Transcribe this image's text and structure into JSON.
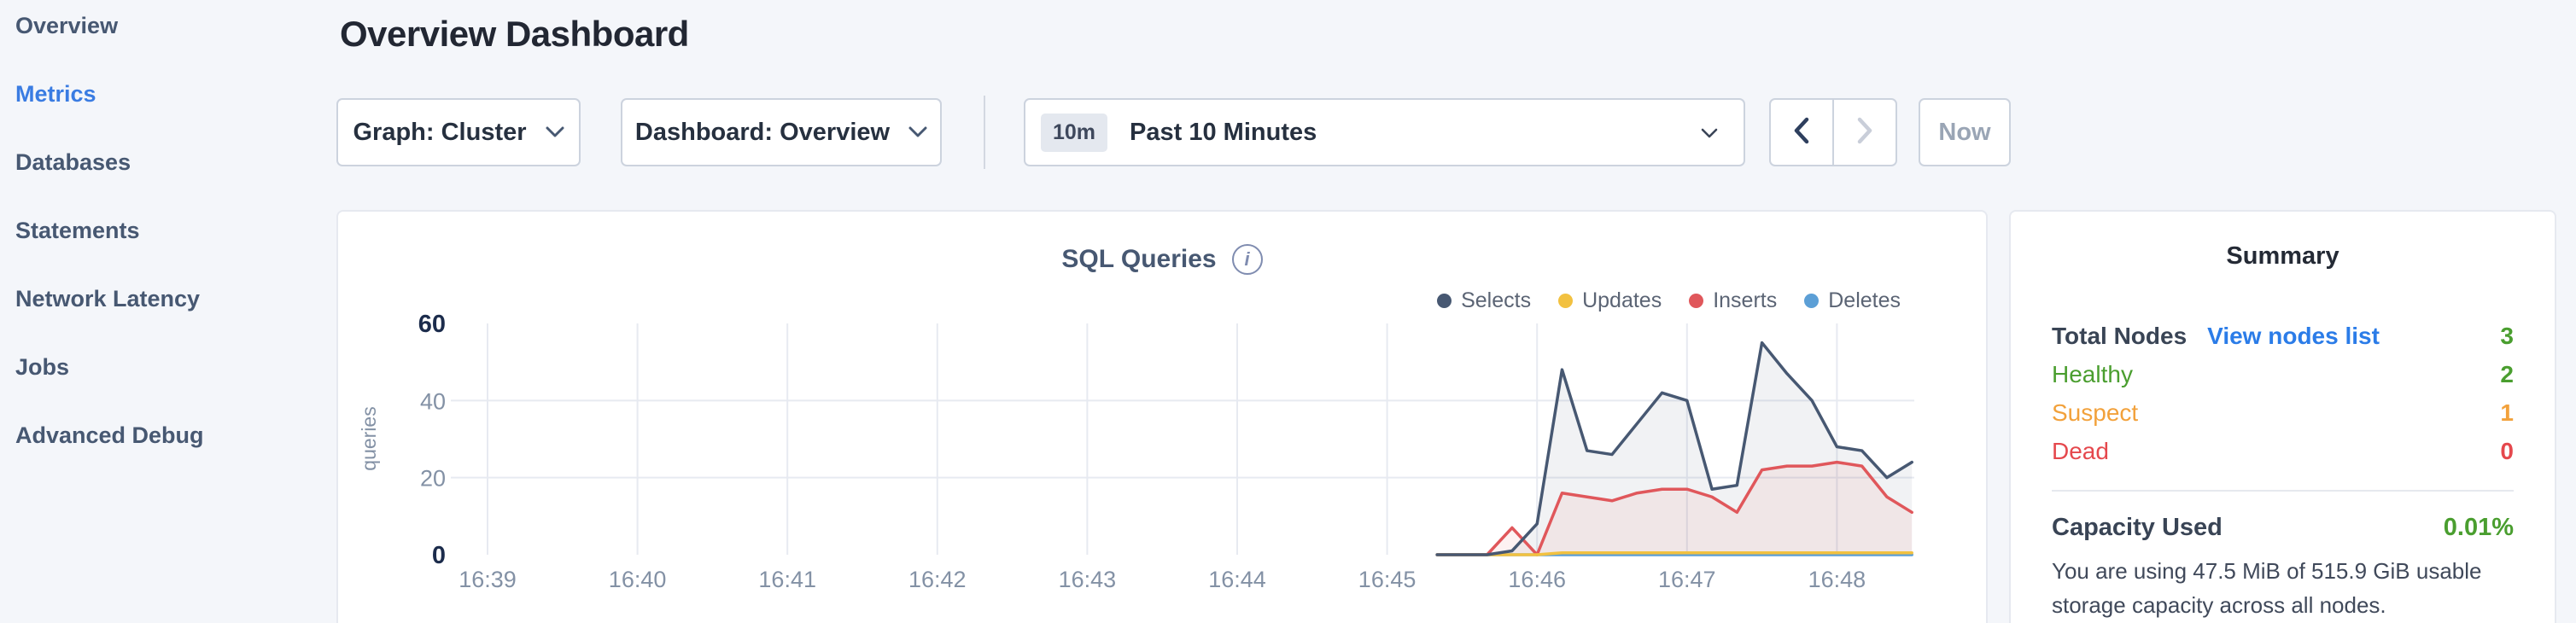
{
  "colors": {
    "accent": "#3a7ce2",
    "link": "#2b7ce8",
    "green": "#4a9e2f",
    "orange": "#f2a13b",
    "red": "#e5484d",
    "bg": "#f4f6fa"
  },
  "sidebar": {
    "items": [
      {
        "label": "Overview",
        "active": false
      },
      {
        "label": "Metrics",
        "active": true
      },
      {
        "label": "Databases",
        "active": false
      },
      {
        "label": "Statements",
        "active": false
      },
      {
        "label": "Network Latency",
        "active": false
      },
      {
        "label": "Jobs",
        "active": false
      },
      {
        "label": "Advanced Debug",
        "active": false
      }
    ]
  },
  "header": {
    "title": "Overview Dashboard"
  },
  "toolbar": {
    "graph_label": "Graph: Cluster",
    "dashboard_label": "Dashboard: Overview",
    "time": {
      "badge": "10m",
      "label": "Past 10 Minutes"
    },
    "now_label": "Now"
  },
  "chart": {
    "title": "SQL Queries",
    "info_icon_glyph": "i"
  },
  "chart_data": {
    "type": "line",
    "title": "SQL Queries",
    "ylabel": "queries",
    "ylim": [
      0,
      60
    ],
    "y_ticks": [
      0,
      20,
      40,
      60
    ],
    "y_gridlines": [
      20,
      40
    ],
    "x_ticks": [
      "16:39",
      "16:40",
      "16:41",
      "16:42",
      "16:43",
      "16:44",
      "16:45",
      "16:46",
      "16:47",
      "16:48"
    ],
    "x_range": [
      "16:39:00",
      "16:48:30"
    ],
    "grid": true,
    "legend_position": "top-right",
    "x": [
      "16:45:20",
      "16:45:30",
      "16:45:40",
      "16:45:50",
      "16:46:00",
      "16:46:10",
      "16:46:20",
      "16:46:30",
      "16:46:40",
      "16:46:50",
      "16:47:00",
      "16:47:10",
      "16:47:20",
      "16:47:30",
      "16:47:40",
      "16:47:50",
      "16:48:00",
      "16:48:10",
      "16:48:20",
      "16:48:30"
    ],
    "series": [
      {
        "name": "Selects",
        "color": "#475872",
        "fill": true,
        "values": [
          0,
          0,
          0,
          1,
          8,
          48,
          27,
          26,
          34,
          42,
          40,
          17,
          18,
          55,
          47,
          40,
          28,
          27,
          20,
          24
        ]
      },
      {
        "name": "Updates",
        "color": "#f2c140",
        "fill": false,
        "values": [
          0,
          0,
          0,
          0,
          0,
          0.5,
          0.5,
          0.5,
          0.5,
          0.5,
          0.5,
          0.5,
          0.5,
          0.5,
          0.5,
          0.5,
          0.5,
          0.5,
          0.5,
          0.5
        ]
      },
      {
        "name": "Inserts",
        "color": "#e0575b",
        "fill": true,
        "values": [
          0,
          0,
          0,
          7,
          0,
          16,
          15,
          14,
          16,
          17,
          17,
          15,
          11,
          22,
          23,
          23,
          24,
          23,
          15,
          11
        ]
      },
      {
        "name": "Deletes",
        "color": "#5c9fd6",
        "fill": false,
        "values": [
          0,
          0,
          0,
          0,
          0,
          0,
          0,
          0,
          0,
          0,
          0,
          0,
          0,
          0,
          0,
          0,
          0,
          0,
          0,
          0
        ]
      }
    ]
  },
  "summary": {
    "title": "Summary",
    "rows": [
      {
        "label": "Total Nodes",
        "link": "View nodes list",
        "value": "3",
        "status": "green"
      },
      {
        "label": "Healthy",
        "value": "2",
        "status": "green"
      },
      {
        "label": "Suspect",
        "value": "1",
        "status": "orange"
      },
      {
        "label": "Dead",
        "value": "0",
        "status": "red"
      }
    ],
    "capacity": {
      "label": "Capacity Used",
      "value": "0.01%",
      "description": "You are using 47.5 MiB of 515.9 GiB usable storage capacity across all nodes."
    }
  }
}
